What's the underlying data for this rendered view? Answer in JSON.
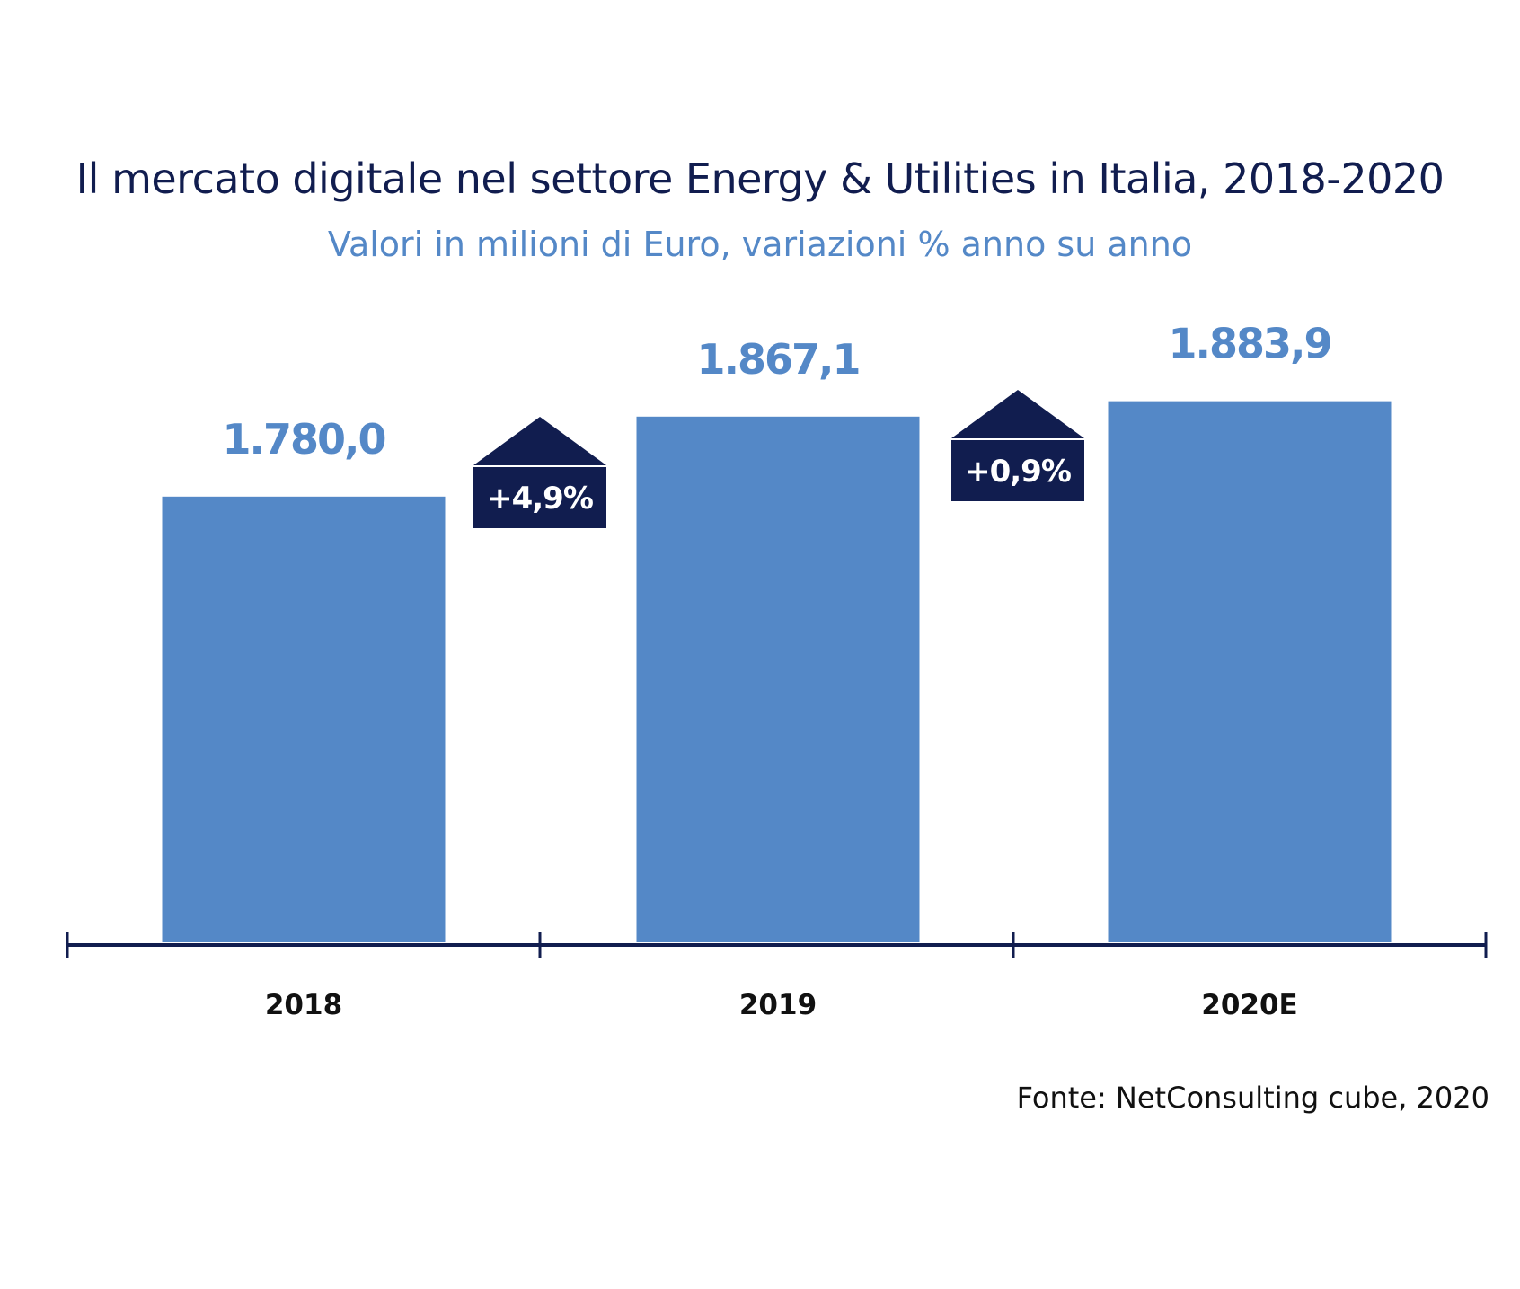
{
  "chart_data": {
    "type": "bar",
    "title": "Il mercato digitale nel settore Energy & Utilities in Italia, 2018-2020",
    "subtitle": "Valori in milioni di Euro, variazioni % anno su anno",
    "categories": [
      "2018",
      "2019",
      "2020E"
    ],
    "values": [
      1780.0,
      1867.1,
      1883.9
    ],
    "value_labels": [
      "1.780,0",
      "1.867,1",
      "1.883,9"
    ],
    "growth_labels": [
      "+4,9%",
      "+0,9%"
    ],
    "grid": false,
    "source": "Fonte: NetConsulting cube, 2020",
    "colors": {
      "bar": "#5488c7",
      "badge": "#111d4f",
      "axis": "#111d4f",
      "title": "#111d4f",
      "value_label": "#5488c7"
    }
  }
}
